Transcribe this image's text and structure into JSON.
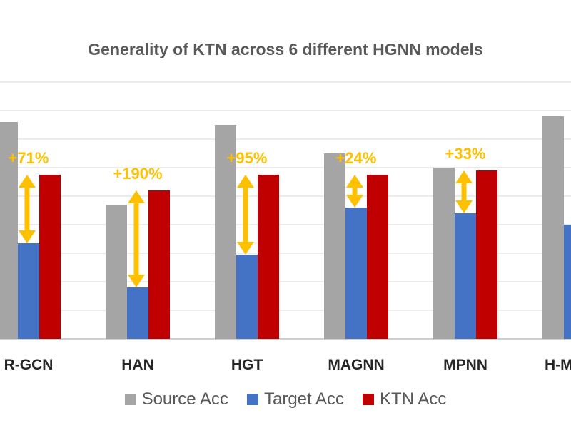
{
  "chart_data": {
    "type": "bar",
    "title": "Generality of KTN across 6 different HGNN models",
    "categories": [
      "R-GCN",
      "HAN",
      "HGT",
      "MAGNN",
      "MPNN",
      "H-MPNN"
    ],
    "series": [
      {
        "name": "Source Acc",
        "color": "#a5a5a5",
        "values": [
          7.6,
          4.7,
          7.5,
          6.5,
          6.0,
          7.8
        ]
      },
      {
        "name": "Target Acc",
        "color": "#4472c4",
        "values": [
          3.35,
          1.8,
          2.95,
          4.6,
          4.4,
          4.0
        ]
      },
      {
        "name": "KTN Acc",
        "color": "#c00000",
        "values": [
          5.75,
          5.2,
          5.75,
          5.75,
          5.9,
          null
        ]
      }
    ],
    "annotations": [
      "+71%",
      "+190%",
      "+95%",
      "+24%",
      "+33%",
      ""
    ],
    "annotation_color": "#ffc000",
    "ylim": [
      0,
      10
    ],
    "grid": true,
    "legend": "bottom"
  }
}
